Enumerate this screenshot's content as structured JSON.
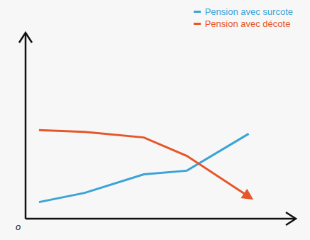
{
  "chart_data": {
    "type": "line",
    "x": [
      5,
      22,
      44,
      60,
      83
    ],
    "series": [
      {
        "name": "Pension avec surcote",
        "color": "#3aa3d8",
        "values": [
          9,
          14,
          24,
          26,
          46
        ],
        "marker": "none"
      },
      {
        "name": "Pension avec décote",
        "color": "#e5572b",
        "values": [
          48,
          47,
          44,
          34,
          12
        ],
        "marker": "arrow"
      }
    ],
    "xlim": [
      0,
      100
    ],
    "ylim": [
      0,
      100
    ],
    "xticks": [],
    "yticks": [],
    "tick_labels": false,
    "grid": false,
    "legend": "upper right",
    "annotations": [
      "o"
    ]
  }
}
